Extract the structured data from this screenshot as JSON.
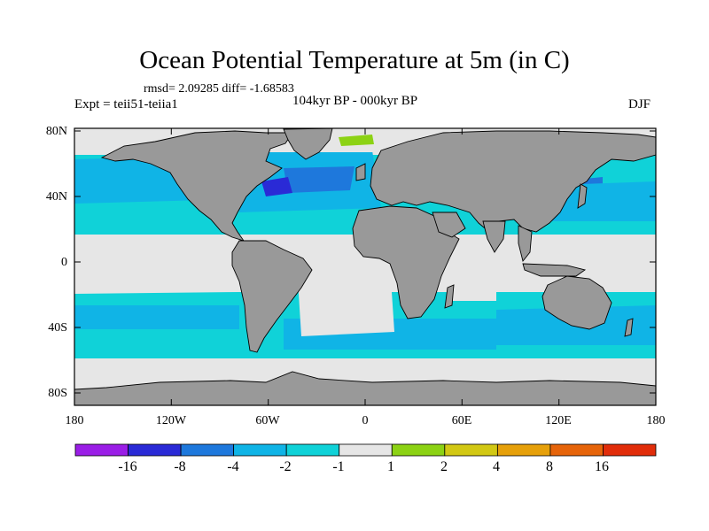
{
  "title": "Ocean Potential Temperature at 5m (in C)",
  "stats": "rmsd= 2.09285 diff= -1.68583",
  "experiment": "Expt = teii51-teiia1",
  "period": "104kyr BP - 000kyr BP",
  "season": "DJF",
  "lat_labels": [
    "80N",
    "40N",
    "0",
    "40S",
    "80S"
  ],
  "lon_labels": [
    "180",
    "120W",
    "60W",
    "0",
    "60E",
    "120E",
    "180"
  ],
  "colorbar": {
    "labels": [
      "-16",
      "-8",
      "-4",
      "-2",
      "-1",
      "1",
      "2",
      "4",
      "8",
      "16"
    ],
    "colors": [
      "#9a1ee6",
      "#2a2ad6",
      "#1e78dc",
      "#10b4e6",
      "#10d2d8",
      "#e6e6e6",
      "#8cd214",
      "#d2c814",
      "#e6a00a",
      "#e6640a",
      "#e12d0a"
    ]
  },
  "colors": {
    "land": "#999999",
    "coast": "#000000",
    "ocean_neutral": "#e6e6e6",
    "ocean_cool": "#10d2d8",
    "ocean_cooler": "#10b4e6",
    "ocean_cold": "#1e78dc",
    "ocean_coldest": "#2a2ad6",
    "ocean_warm": "#8cd214"
  }
}
